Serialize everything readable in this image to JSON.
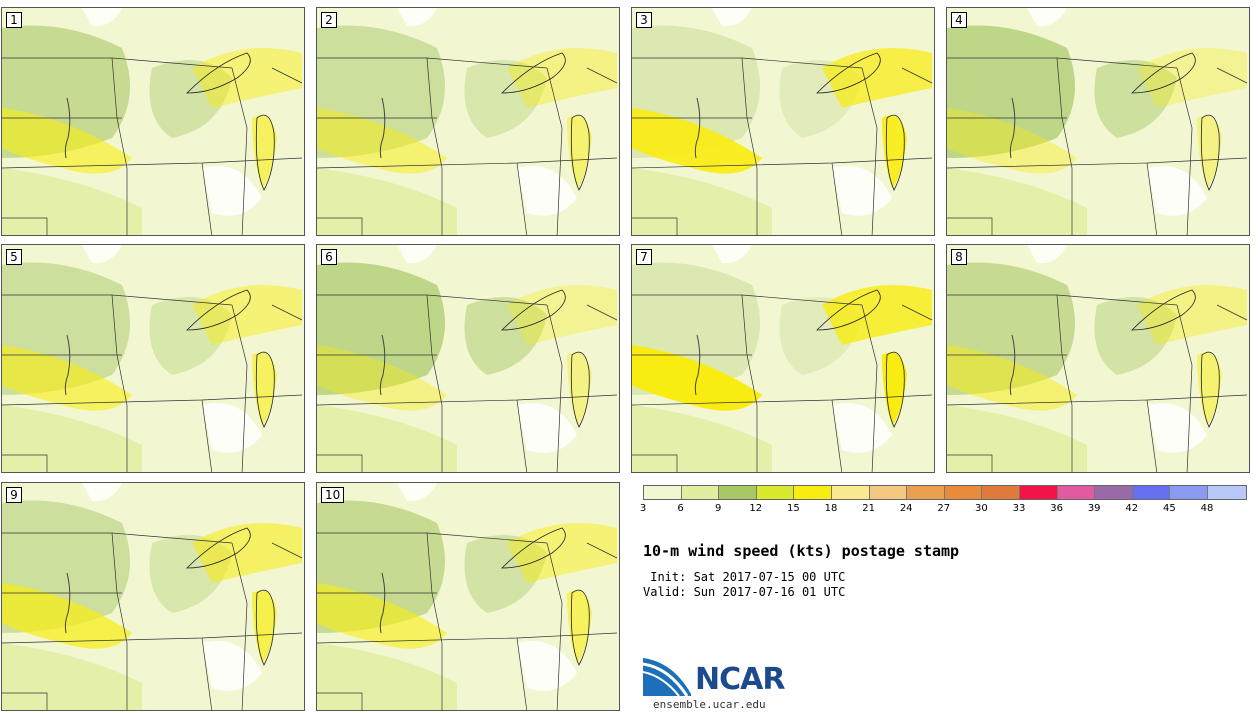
{
  "panels": [
    {
      "label": "1"
    },
    {
      "label": "2"
    },
    {
      "label": "3"
    },
    {
      "label": "4"
    },
    {
      "label": "5"
    },
    {
      "label": "6"
    },
    {
      "label": "7"
    },
    {
      "label": "8"
    },
    {
      "label": "9"
    },
    {
      "label": "10"
    }
  ],
  "legend": {
    "colors": [
      "#f2f7d2",
      "#e0eea0",
      "#a8c866",
      "#d8ea2c",
      "#f8ec10",
      "#fbe98f",
      "#f4c880",
      "#eba050",
      "#e88c3c",
      "#e07a3c",
      "#f21446",
      "#e25aa0",
      "#9a6aa8",
      "#6670f0",
      "#8a9af2",
      "#b8c8f8"
    ],
    "ticks": [
      "3",
      "6",
      "9",
      "12",
      "15",
      "18",
      "21",
      "24",
      "27",
      "30",
      "33",
      "36",
      "39",
      "42",
      "45",
      "48"
    ]
  },
  "title": "10-m wind speed (kts) postage stamp",
  "init_line": " Init: Sat 2017-07-15 00 UTC",
  "valid_line": "Valid: Sun 2017-07-16 01 UTC",
  "logo": {
    "text": "NCAR",
    "color": "#1c4a8c"
  },
  "url": "ensemble.ucar.edu"
}
